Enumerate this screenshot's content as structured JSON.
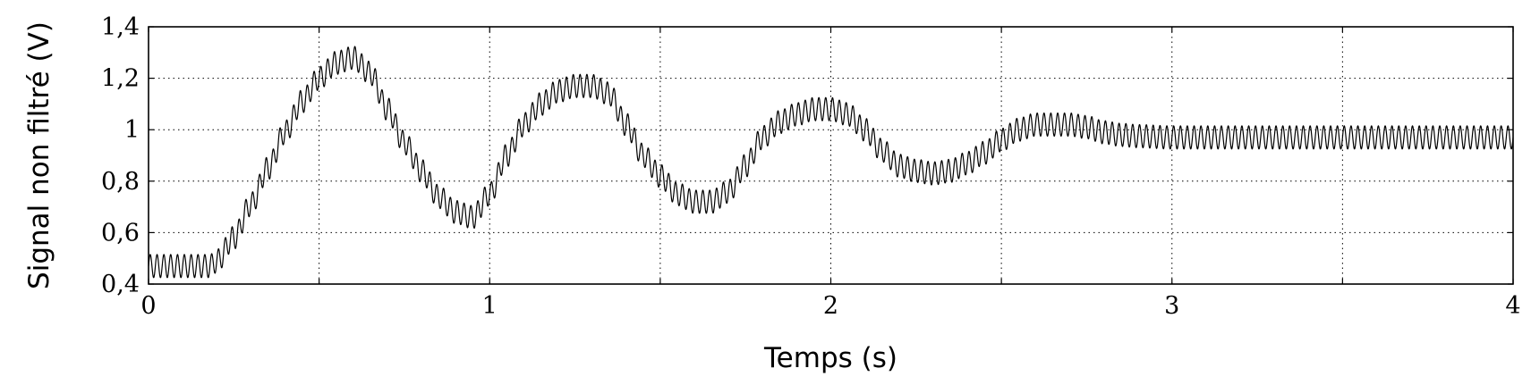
{
  "chart_data": {
    "type": "line",
    "xlabel": "Temps (s)",
    "ylabel": "Signal non filtré (V)",
    "xlim": [
      0,
      4
    ],
    "ylim": [
      0.4,
      1.4
    ],
    "xticks": [
      0,
      0.5,
      1,
      1.5,
      2,
      2.5,
      3,
      3.5,
      4
    ],
    "xtick_labels": [
      "0",
      "",
      "1",
      "",
      "2",
      "",
      "3",
      "",
      "4"
    ],
    "yticks": [
      0.4,
      0.6,
      0.8,
      1.0,
      1.2,
      1.4
    ],
    "ytick_labels": [
      "0,4",
      "0,6",
      "0,8",
      "1",
      "1,2",
      "1,4"
    ],
    "grid": true,
    "grid_style": "dotted",
    "line_color": "#000000",
    "series": [
      {
        "x": [
          0,
          0.1,
          0.18,
          0.2,
          0.25,
          0.3,
          0.35,
          0.4,
          0.45,
          0.5,
          0.55,
          0.6,
          0.65,
          0.7,
          0.75,
          0.8,
          0.85,
          0.9,
          0.95,
          1.0,
          1.05,
          1.1,
          1.15,
          1.2,
          1.25,
          1.3,
          1.35,
          1.4,
          1.45,
          1.5,
          1.55,
          1.6,
          1.65,
          1.7,
          1.75,
          1.8,
          1.85,
          1.9,
          1.95,
          2.0,
          2.05,
          2.1,
          2.15,
          2.2,
          2.25,
          2.3,
          2.35,
          2.4,
          2.45,
          2.5,
          2.55,
          2.6,
          2.65,
          2.7,
          2.75,
          2.8,
          2.85,
          2.9,
          3.0,
          3.5,
          4.0
        ],
        "y_center": [
          0.47,
          0.47,
          0.47,
          0.49,
          0.58,
          0.71,
          0.85,
          0.99,
          1.11,
          1.2,
          1.26,
          1.28,
          1.22,
          1.08,
          0.95,
          0.84,
          0.74,
          0.68,
          0.66,
          0.75,
          0.9,
          1.02,
          1.1,
          1.15,
          1.17,
          1.17,
          1.14,
          1.02,
          0.9,
          0.82,
          0.75,
          0.72,
          0.72,
          0.76,
          0.86,
          0.97,
          1.03,
          1.06,
          1.08,
          1.08,
          1.06,
          1.0,
          0.92,
          0.86,
          0.84,
          0.83,
          0.84,
          0.87,
          0.91,
          0.96,
          1.0,
          1.02,
          1.02,
          1.02,
          1.01,
          0.99,
          0.98,
          0.975,
          0.97,
          0.97,
          0.97
        ],
        "ripple_amplitude": 0.045,
        "ripple_frequency_hz": 50
      }
    ]
  }
}
